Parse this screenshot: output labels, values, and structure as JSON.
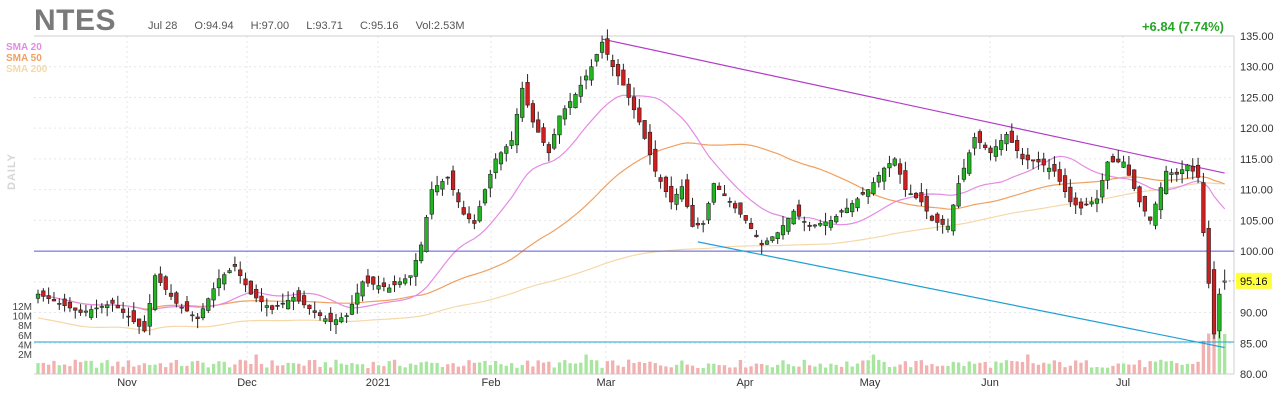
{
  "header": {
    "ticker": "NTES",
    "date": "Jul 28",
    "open": "O:94.94",
    "high": "H:97.00",
    "low": "L:93.71",
    "close": "C:95.16",
    "volume": "Vol:2.53M",
    "change": "+6.84 (7.74%)"
  },
  "legend": [
    {
      "label": "SMA 20",
      "color": "#e58be5"
    },
    {
      "label": "SMA 50",
      "color": "#f0a060"
    },
    {
      "label": "SMA 200",
      "color": "#f6d8a8"
    }
  ],
  "side_label": "DAILY",
  "colors": {
    "up": "#22b422",
    "down": "#cc1f1f",
    "trend_upper": "#b23cc8",
    "trend_lower": "#1ea0d4",
    "hline": "#5b5bd6",
    "last_price_bg": "#ffff3a"
  },
  "chart_data": {
    "type": "candlestick",
    "y_axis_ticks": [
      "135.00",
      "130.00",
      "125.00",
      "120.00",
      "115.00",
      "110.00",
      "105.00",
      "100.00",
      "95.00",
      "90.00",
      "85.00",
      "80.00"
    ],
    "ylim": [
      80,
      135
    ],
    "x_axis_labels": [
      "Nov",
      "Dec",
      "2021",
      "Feb",
      "Mar",
      "Apr",
      "May",
      "Jun",
      "Jul"
    ],
    "volume_axis_labels": [
      "12M",
      "10M",
      "8M",
      "6M",
      "4M",
      "2M"
    ],
    "last_price": "95.16",
    "horizontal_lines": [
      100.0,
      85.2
    ],
    "price_waypoints": [
      [
        0,
        93.0
      ],
      [
        8,
        90.0
      ],
      [
        14,
        91.5
      ],
      [
        18,
        88.5
      ],
      [
        20,
        87.0
      ],
      [
        22,
        96.0
      ],
      [
        26,
        91.5
      ],
      [
        30,
        89.0
      ],
      [
        34,
        95.5
      ],
      [
        37,
        97.5
      ],
      [
        40,
        93.0
      ],
      [
        44,
        90.5
      ],
      [
        48,
        92.5
      ],
      [
        52,
        90.0
      ],
      [
        55,
        88.5
      ],
      [
        58,
        89.5
      ],
      [
        61,
        95.0
      ],
      [
        66,
        94.0
      ],
      [
        70,
        96.0
      ],
      [
        72,
        101.0
      ],
      [
        74,
        110.0
      ],
      [
        77,
        112.0
      ],
      [
        80,
        106.0
      ],
      [
        82,
        104.5
      ],
      [
        84,
        110.0
      ],
      [
        86,
        115.0
      ],
      [
        89,
        118.0
      ],
      [
        91,
        126.5
      ],
      [
        93,
        121.0
      ],
      [
        96,
        116.0
      ],
      [
        98,
        122.0
      ],
      [
        101,
        125.5
      ],
      [
        104,
        130.0
      ],
      [
        106,
        134.0
      ],
      [
        108,
        130.0
      ],
      [
        110,
        127.0
      ],
      [
        113,
        121.0
      ],
      [
        116,
        113.0
      ],
      [
        119,
        108.0
      ],
      [
        121,
        110.5
      ],
      [
        123,
        104.0
      ],
      [
        125,
        104.5
      ],
      [
        127,
        111.0
      ],
      [
        130,
        108.0
      ],
      [
        133,
        105.0
      ],
      [
        136,
        101.0
      ],
      [
        139,
        103.0
      ],
      [
        142,
        106.5
      ],
      [
        145,
        104.0
      ],
      [
        149,
        105.0
      ],
      [
        152,
        107.0
      ],
      [
        156,
        110.0
      ],
      [
        159,
        113.5
      ],
      [
        161,
        115.0
      ],
      [
        163,
        110.0
      ],
      [
        166,
        108.0
      ],
      [
        168,
        105.0
      ],
      [
        171,
        104.0
      ],
      [
        173,
        111.0
      ],
      [
        176,
        118.5
      ],
      [
        179,
        116.0
      ],
      [
        182,
        119.0
      ],
      [
        185,
        115.0
      ],
      [
        188,
        114.5
      ],
      [
        191,
        113.0
      ],
      [
        194,
        108.0
      ],
      [
        196,
        107.0
      ],
      [
        199,
        108.5
      ],
      [
        201,
        114.5
      ],
      [
        204,
        114.5
      ],
      [
        207,
        108.0
      ],
      [
        209,
        105.0
      ],
      [
        212,
        113.0
      ],
      [
        214,
        112.5
      ],
      [
        216,
        114.0
      ],
      [
        218,
        112.0
      ],
      [
        219,
        103.0
      ],
      [
        221,
        86.5
      ],
      [
        222,
        93.0
      ],
      [
        223,
        95.16
      ]
    ],
    "trend_upper": [
      [
        106,
        134.5
      ],
      [
        223,
        112.7
      ]
    ],
    "trend_lower": [
      [
        124,
        101.5
      ],
      [
        223,
        84.3
      ]
    ]
  }
}
